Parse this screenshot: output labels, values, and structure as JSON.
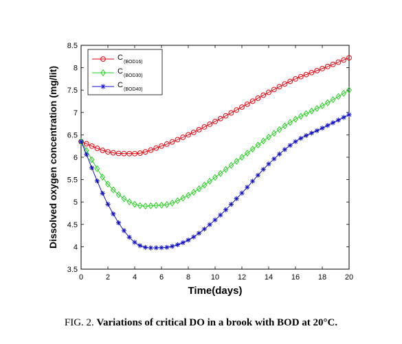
{
  "chart_data": {
    "type": "line",
    "xlabel": "Time(days)",
    "ylabel": "Dissolved oxygen concentration (mg/lit)",
    "xlim": [
      0,
      20
    ],
    "ylim": [
      3.5,
      8.5
    ],
    "x_ticks": [
      0,
      2,
      4,
      6,
      8,
      10,
      12,
      14,
      16,
      18,
      20
    ],
    "y_ticks": [
      3.5,
      4,
      4.5,
      5,
      5.5,
      6,
      6.5,
      7,
      7.5,
      8,
      8.5
    ],
    "y_tick_labels": [
      "3.5",
      "4",
      "4.5",
      "5",
      "5.5",
      "6",
      "6.5",
      "7",
      "7.5",
      "8",
      "8.5"
    ],
    "grid": false,
    "legend_position": "top-left",
    "x": [
      0,
      2,
      4,
      6,
      8,
      10,
      12,
      14,
      16,
      18,
      20
    ],
    "series": [
      {
        "name": "C",
        "subscript": "(BOD16)",
        "color": "#e8000b",
        "marker": "circle",
        "values": [
          6.35,
          6.12,
          6.08,
          6.25,
          6.5,
          6.8,
          7.12,
          7.45,
          7.75,
          7.98,
          8.22
        ]
      },
      {
        "name": "C",
        "subscript": "(BOD30)",
        "color": "#22d11e",
        "marker": "diamond",
        "values": [
          6.35,
          5.4,
          4.95,
          4.93,
          5.15,
          5.55,
          6.0,
          6.45,
          6.85,
          7.15,
          7.5
        ]
      },
      {
        "name": "C",
        "subscript": "(BOD40)",
        "color": "#1010c8",
        "marker": "asterisk",
        "values": [
          6.35,
          4.95,
          4.1,
          3.98,
          4.15,
          4.6,
          5.2,
          5.85,
          6.35,
          6.65,
          6.95
        ]
      }
    ]
  },
  "caption": {
    "prefix": "FIG. 2. ",
    "text": "Variations of critical DO in a brook with BOD at 20°C."
  }
}
